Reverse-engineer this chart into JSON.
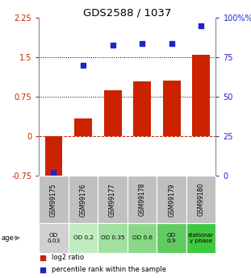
{
  "title": "GDS2588 / 1037",
  "samples": [
    "GSM99175",
    "GSM99176",
    "GSM99177",
    "GSM99178",
    "GSM99179",
    "GSM99180"
  ],
  "log2_ratio": [
    -0.85,
    0.35,
    0.88,
    1.05,
    1.07,
    1.55
  ],
  "percentile_rank": [
    2.0,
    70.0,
    83.0,
    84.0,
    84.0,
    95.0
  ],
  "bar_color": "#cc2200",
  "dot_color": "#2222cc",
  "ylim_left": [
    -0.75,
    2.25
  ],
  "ylim_right": [
    0,
    100
  ],
  "yticks_left": [
    -0.75,
    0,
    0.75,
    1.5,
    2.25
  ],
  "yticks_right": [
    0,
    25,
    50,
    75,
    100
  ],
  "dotted_hlines": [
    0.75,
    1.5
  ],
  "dashed_hline": 0.0,
  "age_labels": [
    "OD\n0.03",
    "OD 0.2",
    "OD 0.35",
    "OD 0.6",
    "OD\n0.9",
    "stationar\ny phase"
  ],
  "age_bg_colors": [
    "#d0d0d0",
    "#c0ecc0",
    "#a0e0a0",
    "#88d888",
    "#60cc60",
    "#40c840"
  ],
  "sample_bg_color": "#c0c0c0",
  "legend_bar_label": "log2 ratio",
  "legend_dot_label": "percentile rank within the sample"
}
